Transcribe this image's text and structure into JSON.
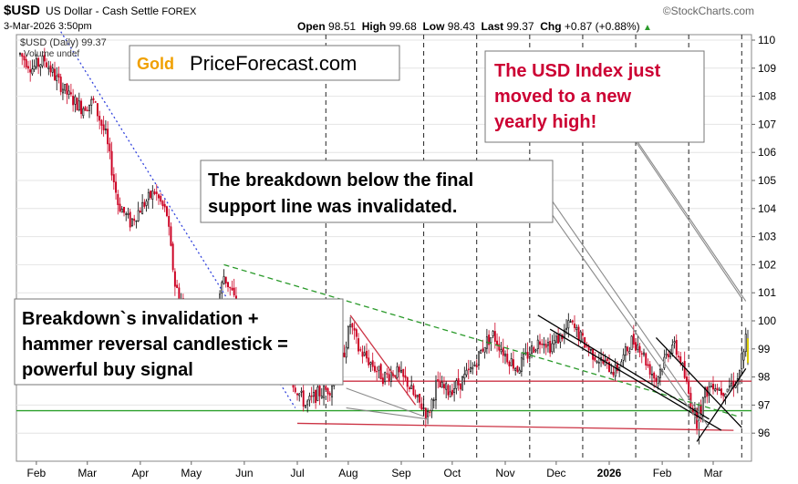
{
  "header": {
    "symbol": "$USD",
    "description": "US Dollar - Cash Settle",
    "exchange": "FOREX",
    "watermark": "©StockCharts.com",
    "timestamp": "3-Mar-2026 3:50pm",
    "open_label": "Open",
    "open": "98.51",
    "high_label": "High",
    "high": "99.68",
    "low_label": "Low",
    "low": "98.43",
    "last_label": "Last",
    "last": "99.37",
    "chg_label": "Chg",
    "chg": "+0.87 (+0.88%)",
    "legend_line1": "$USD (Daily) 99.37",
    "legend_line2": "Volume undef"
  },
  "logo": {
    "gold": "Gold",
    "rest": "PriceForecast.com"
  },
  "annotations": {
    "new_high": [
      "The USD Index just",
      "moved to a new",
      "yearly high!"
    ],
    "breakdown": [
      "The breakdown below the final",
      "support line was invalidated."
    ],
    "buy_signal": [
      "Breakdown`s invalidation +",
      "hammer reversal candlestick =",
      "powerful buy signal"
    ]
  },
  "colors": {
    "candle_up": "#000000",
    "candle_down": "#cc0022",
    "blue_trend": "#3344dd",
    "green_trend": "#2a9a2a",
    "red_line": "#cc3344",
    "green_line": "#2ca02c",
    "annotation_red": "#cc0033",
    "logo_gold": "#f0a000"
  },
  "chart_data": {
    "type": "candlestick",
    "ylim": [
      95.5,
      110.5
    ],
    "y_ticks": [
      96,
      97,
      98,
      99,
      100,
      101,
      102,
      103,
      104,
      105,
      106,
      107,
      108,
      109,
      110
    ],
    "x_labels": [
      "Feb",
      "Mar",
      "Apr",
      "May",
      "Jun",
      "Jul",
      "Aug",
      "Sep",
      "Oct",
      "Nov",
      "Dec",
      "2026",
      "Feb",
      "Mar"
    ],
    "bold_x_labels": [
      "2026"
    ],
    "series_path": [
      [
        0,
        109.5
      ],
      [
        6,
        109.0
      ],
      [
        12,
        109.3
      ],
      [
        18,
        108.6
      ],
      [
        24,
        108.0
      ],
      [
        30,
        107.6
      ],
      [
        36,
        107.8
      ],
      [
        42,
        106.6
      ],
      [
        48,
        104.2
      ],
      [
        54,
        103.5
      ],
      [
        60,
        104.1
      ],
      [
        66,
        104.6
      ],
      [
        72,
        103.8
      ],
      [
        74,
        102.5
      ],
      [
        76,
        101.3
      ],
      [
        80,
        100.6
      ],
      [
        84,
        99.2
      ],
      [
        90,
        99.6
      ],
      [
        96,
        100.3
      ],
      [
        100,
        101.6
      ],
      [
        104,
        101.0
      ],
      [
        110,
        99.6
      ],
      [
        116,
        98.9
      ],
      [
        122,
        98.8
      ],
      [
        128,
        98.6
      ],
      [
        134,
        97.8
      ],
      [
        140,
        97.0
      ],
      [
        146,
        97.4
      ],
      [
        152,
        97.6
      ],
      [
        158,
        98.6
      ],
      [
        162,
        99.9
      ],
      [
        166,
        99.0
      ],
      [
        172,
        98.5
      ],
      [
        178,
        98.0
      ],
      [
        184,
        98.2
      ],
      [
        190,
        97.8
      ],
      [
        194,
        97.2
      ],
      [
        198,
        96.9
      ],
      [
        200,
        96.6
      ],
      [
        204,
        97.7
      ],
      [
        210,
        97.5
      ],
      [
        216,
        97.8
      ],
      [
        222,
        98.3
      ],
      [
        228,
        99.2
      ],
      [
        232,
        99.5
      ],
      [
        238,
        98.8
      ],
      [
        244,
        98.3
      ],
      [
        250,
        98.9
      ],
      [
        256,
        99.4
      ],
      [
        260,
        99.1
      ],
      [
        266,
        99.5
      ],
      [
        270,
        99.9
      ],
      [
        274,
        99.5
      ],
      [
        280,
        98.9
      ],
      [
        286,
        98.5
      ],
      [
        292,
        98.2
      ],
      [
        296,
        98.7
      ],
      [
        300,
        99.3
      ],
      [
        304,
        99.1
      ],
      [
        308,
        98.4
      ],
      [
        312,
        97.9
      ],
      [
        316,
        98.6
      ],
      [
        320,
        99.2
      ],
      [
        324,
        98.6
      ],
      [
        328,
        97.4
      ],
      [
        332,
        96.4
      ],
      [
        336,
        97.4
      ],
      [
        340,
        97.8
      ],
      [
        344,
        97.5
      ],
      [
        348,
        97.7
      ],
      [
        352,
        97.9
      ],
      [
        356,
        99.4
      ]
    ],
    "bars_total": 358,
    "extra_candles": [
      {
        "i": 333,
        "o": 96.6,
        "h": 97.1,
        "l": 95.6,
        "c": 97.0
      },
      {
        "i": 355,
        "o": 98.6,
        "h": 99.0,
        "l": 98.3,
        "c": 98.9
      },
      {
        "i": 357,
        "o": 98.51,
        "h": 99.68,
        "l": 98.43,
        "c": 99.37
      }
    ],
    "dashed_verticals": [
      150,
      198,
      224,
      250,
      276,
      302,
      328,
      354
    ],
    "horizontal_lines": [
      {
        "y": 97.85,
        "color": "red_line"
      },
      {
        "y": 96.8,
        "color": "green_line"
      }
    ],
    "trend_lines": [
      {
        "from": [
          20,
          110.3
        ],
        "to": [
          135,
          96.9
        ],
        "color": "blue_trend",
        "dash": "dot"
      },
      {
        "from": [
          100,
          102.0
        ],
        "to": [
          352,
          96.6
        ],
        "color": "green_trend",
        "dash": "dash"
      },
      {
        "from": [
          136,
          96.35
        ],
        "to": [
          350,
          96.1
        ],
        "color": "red_line",
        "dash": "solid"
      },
      {
        "from": [
          162,
          100.2
        ],
        "to": [
          194,
          97.0
        ],
        "color": "red_line",
        "dash": "solid"
      },
      {
        "from": [
          254,
          100.2
        ],
        "to": [
          338,
          96.5
        ],
        "color": "candle_up",
        "dash": "solid"
      },
      {
        "from": [
          260,
          99.7
        ],
        "to": [
          344,
          96.1
        ],
        "color": "candle_up",
        "dash": "solid"
      },
      {
        "from": [
          312,
          99.4
        ],
        "to": [
          354,
          96.2
        ],
        "color": "candle_up",
        "dash": "solid"
      },
      {
        "from": [
          332,
          95.7
        ],
        "to": [
          356,
          98.3
        ],
        "color": "candle_up",
        "dash": "solid"
      }
    ],
    "callout_pointers": [
      {
        "from": [
          160,
          96.9
        ],
        "to": [
          200,
          96.5
        ],
        "box": "buy_signal"
      },
      {
        "from": [
          160,
          97.6
        ],
        "to": [
          198,
          96.6
        ],
        "box": "buy_signal"
      },
      {
        "from": [
          255,
          104.9
        ],
        "to": [
          338,
          96.2
        ],
        "box": "breakdown"
      },
      {
        "from": [
          255,
          104.4
        ],
        "to": [
          333,
          96.4
        ],
        "box": "breakdown"
      },
      {
        "from": [
          298,
          106.9
        ],
        "to": [
          356,
          100.7
        ],
        "box": "new_high"
      },
      {
        "from": [
          300,
          106.6
        ],
        "to": [
          354,
          100.8
        ],
        "box": "new_high"
      }
    ]
  }
}
